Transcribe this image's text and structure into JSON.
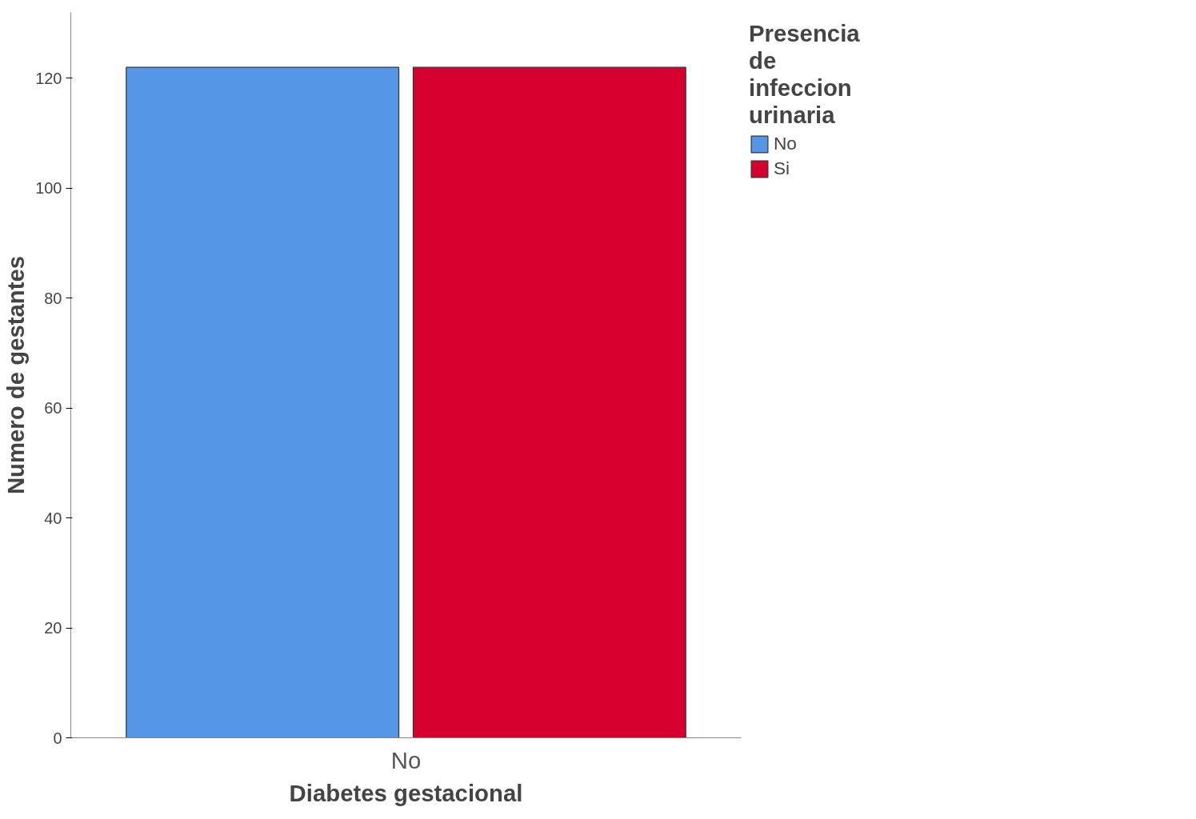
{
  "chart_data": {
    "type": "bar",
    "xlabel": "Diabetes gestacional",
    "ylabel": "Numero de gestantes",
    "legend_title": "Presencia de infeccion urinaria",
    "categories": [
      "No"
    ],
    "series": [
      {
        "name": "No",
        "color": "#5596e6",
        "values": [
          122
        ]
      },
      {
        "name": "Si",
        "color": "#d6002e",
        "values": [
          122
        ]
      }
    ],
    "ylim": [
      0,
      132
    ],
    "yticks": [
      0,
      20,
      40,
      60,
      80,
      100,
      120
    ],
    "grid": false,
    "legend": "right"
  }
}
